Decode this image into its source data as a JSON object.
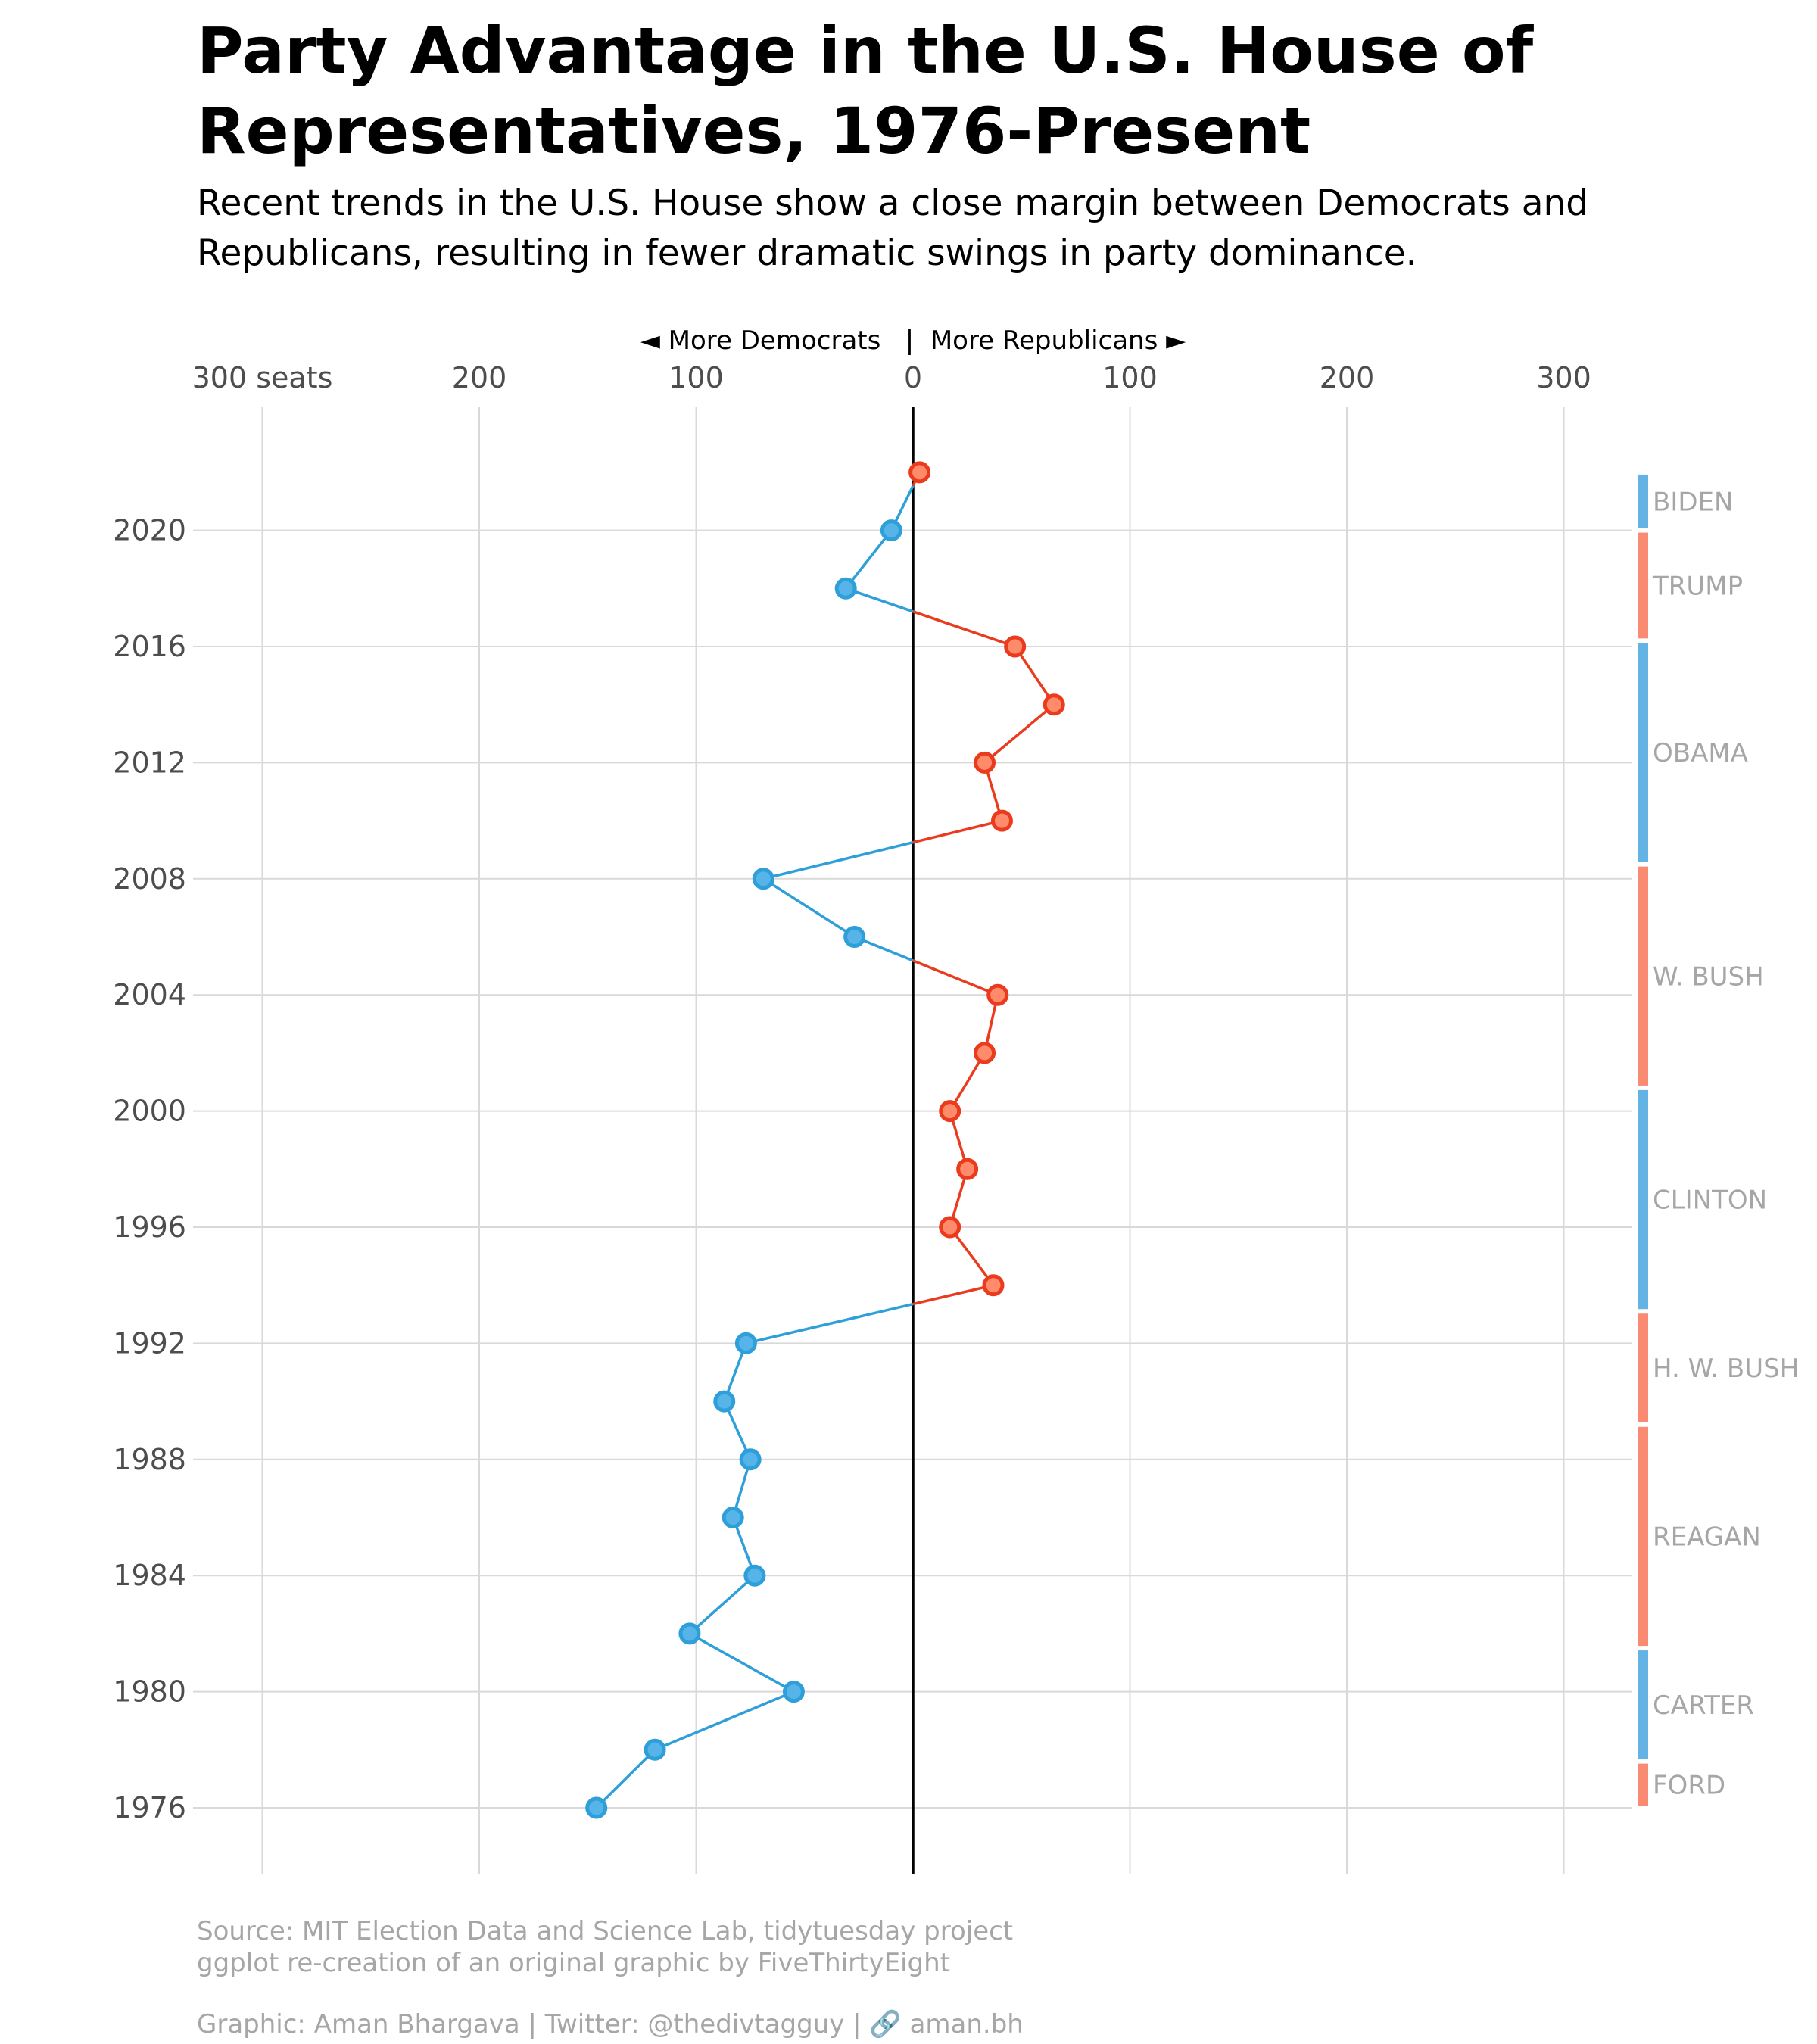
{
  "title": "Party Advantage in the U.S. House of Representatives, 1976-Present",
  "subtitle": "Recent trends in the U.S. House show a close margin between Democrats and Republicans, resulting in fewer dramatic swings in party dominance.",
  "direction_label": "◄ More Democrats   |  More Republicans ►",
  "footer": {
    "source_line1": "Source: MIT Election Data and Science Lab, tidytuesday project",
    "source_line2": "ggplot re-creation of an original graphic by FiveThirtyEight",
    "credit": "Graphic: Aman Bhargava | Twitter: @thedivtagguy | 🔗 aman.bh"
  },
  "chart_data": {
    "type": "line",
    "xlabel": "",
    "ylabel": "",
    "x_ticks": [
      {
        "value": -300,
        "label": "300 seats"
      },
      {
        "value": -200,
        "label": "200"
      },
      {
        "value": -100,
        "label": "100"
      },
      {
        "value": 0,
        "label": "0"
      },
      {
        "value": 100,
        "label": "100"
      },
      {
        "value": 200,
        "label": "200"
      },
      {
        "value": 300,
        "label": "300"
      }
    ],
    "y_ticks": [
      1976,
      1980,
      1984,
      1988,
      1992,
      1996,
      2000,
      2004,
      2008,
      2012,
      2016,
      2020
    ],
    "xlim": [
      -300,
      300
    ],
    "ylim": [
      1976,
      2022
    ],
    "grid": true,
    "sign_convention": "negative = more Democrats, positive = more Republicans (seat advantage)",
    "points": [
      {
        "year": 1976,
        "value": -146
      },
      {
        "year": 1978,
        "value": -119
      },
      {
        "year": 1980,
        "value": -55
      },
      {
        "year": 1982,
        "value": -103
      },
      {
        "year": 1984,
        "value": -73
      },
      {
        "year": 1986,
        "value": -83
      },
      {
        "year": 1988,
        "value": -75
      },
      {
        "year": 1990,
        "value": -87
      },
      {
        "year": 1992,
        "value": -77
      },
      {
        "year": 1994,
        "value": 37
      },
      {
        "year": 1996,
        "value": 17
      },
      {
        "year": 1998,
        "value": 25
      },
      {
        "year": 2000,
        "value": 17
      },
      {
        "year": 2002,
        "value": 33
      },
      {
        "year": 2004,
        "value": 39
      },
      {
        "year": 2006,
        "value": -27
      },
      {
        "year": 2008,
        "value": -69
      },
      {
        "year": 2010,
        "value": 41
      },
      {
        "year": 2012,
        "value": 33
      },
      {
        "year": 2014,
        "value": 65
      },
      {
        "year": 2016,
        "value": 47
      },
      {
        "year": 2018,
        "value": -31
      },
      {
        "year": 2020,
        "value": -10
      },
      {
        "year": 2022,
        "value": 3
      }
    ],
    "presidents": [
      {
        "name": "BIDEN",
        "start": 2022,
        "end": 2020,
        "party": "dem"
      },
      {
        "name": "TRUMP",
        "start": 2020,
        "end": 2016.2,
        "party": "rep"
      },
      {
        "name": "OBAMA",
        "start": 2016.2,
        "end": 2008.5,
        "party": "dem"
      },
      {
        "name": "W. BUSH",
        "start": 2008.5,
        "end": 2000.8,
        "party": "rep"
      },
      {
        "name": "CLINTON",
        "start": 2000.8,
        "end": 1993.1,
        "party": "dem"
      },
      {
        "name": "H. W. BUSH",
        "start": 1993.1,
        "end": 1989.2,
        "party": "rep"
      },
      {
        "name": "REAGAN",
        "start": 1989.2,
        "end": 1981.5,
        "party": "rep"
      },
      {
        "name": "CARTER",
        "start": 1981.5,
        "end": 1977.6,
        "party": "dem"
      },
      {
        "name": "FORD",
        "start": 1977.6,
        "end": 1976,
        "party": "rep"
      }
    ],
    "colors": {
      "dem_line": "#2e9fd8",
      "dem_point_fill": "#56b4e9",
      "rep_line": "#ea3b1e",
      "rep_point_fill": "#ff8b6b",
      "dem_bar": "#63b3e4",
      "rep_bar": "#fa8b73",
      "grid": "#d9d9d9",
      "zero_line": "#000000",
      "president_label": "#a6a6a6",
      "tick_label": "#4d4d4d"
    }
  }
}
